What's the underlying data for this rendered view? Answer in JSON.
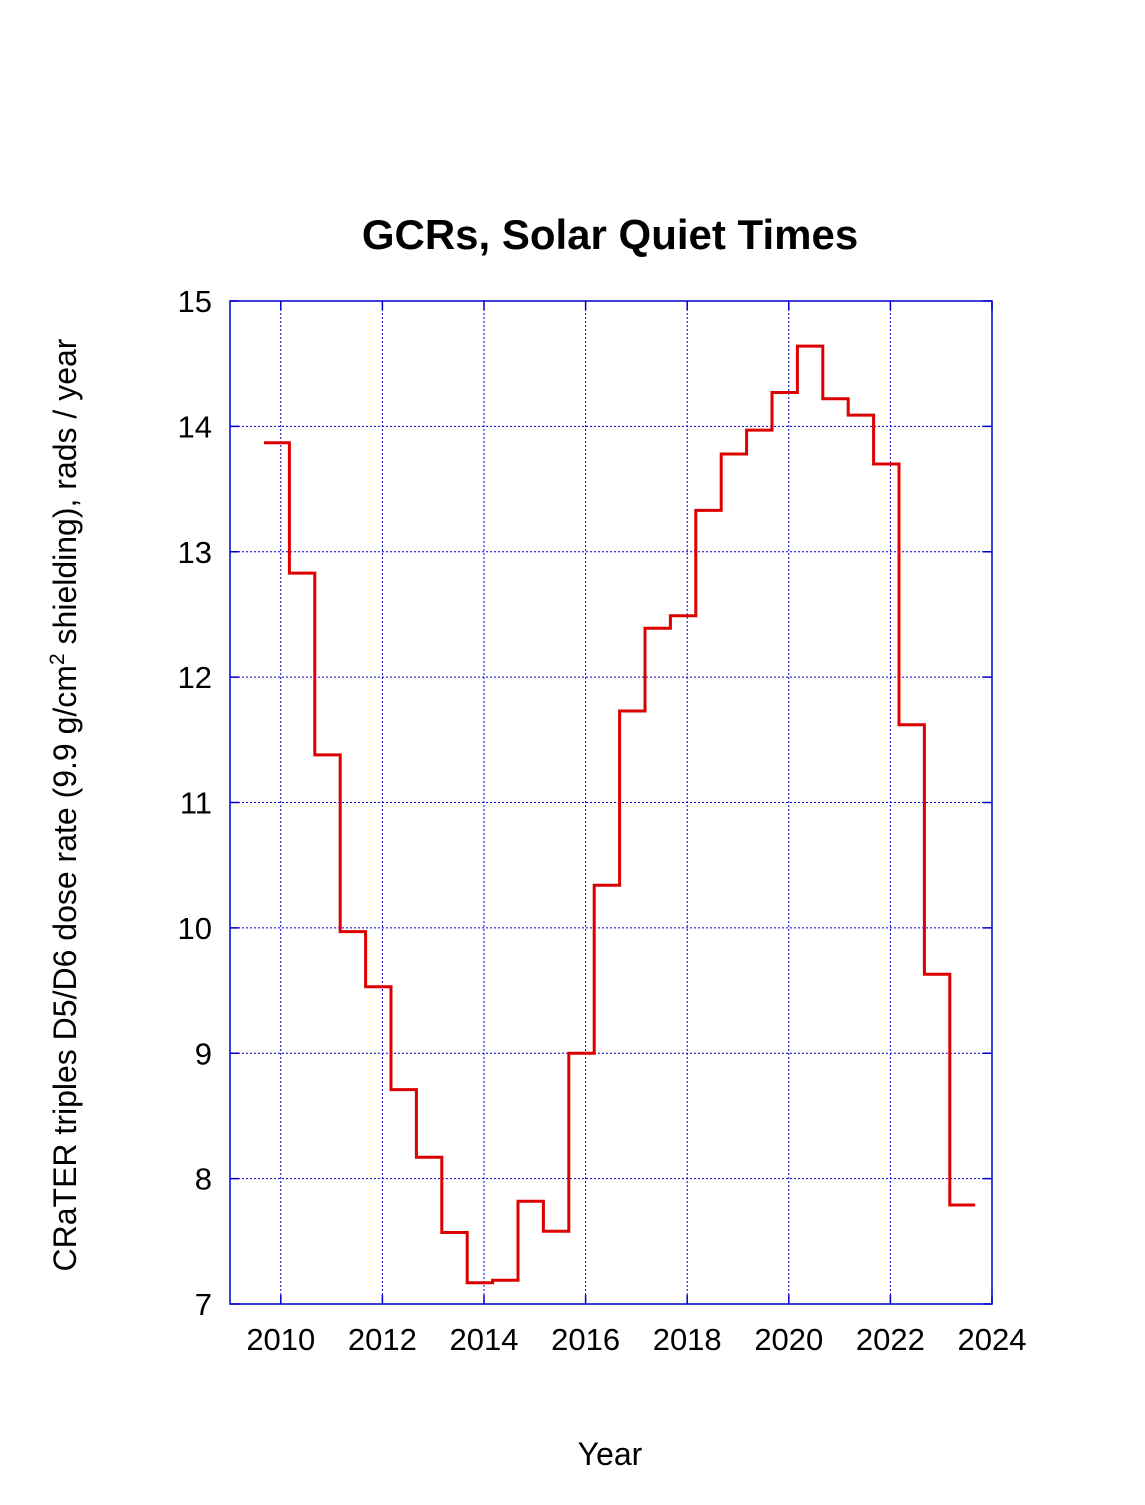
{
  "chart_data": {
    "type": "line",
    "step": true,
    "title": "GCRs, Solar Quiet Times",
    "xlabel": "Year",
    "ylabel_parts": [
      "CRaTER triples D5/D6 dose rate (9.9 g/cm",
      "2",
      " shielding), rads / year"
    ],
    "xlim": [
      2009,
      2024
    ],
    "ylim": [
      7,
      15
    ],
    "xticks": [
      2010,
      2012,
      2014,
      2016,
      2018,
      2020,
      2022,
      2024
    ],
    "yticks": [
      7,
      8,
      9,
      10,
      11,
      12,
      13,
      14,
      15
    ],
    "grid": true,
    "line_color": "#dd0000",
    "grid_color": "#0000cc",
    "series": [
      {
        "steps": [
          {
            "x0": 2009.67,
            "x1": 2010.17,
            "y": 13.87
          },
          {
            "x0": 2010.17,
            "x1": 2010.67,
            "y": 12.83
          },
          {
            "x0": 2010.67,
            "x1": 2011.17,
            "y": 11.38
          },
          {
            "x0": 2011.17,
            "x1": 2011.67,
            "y": 9.97
          },
          {
            "x0": 2011.67,
            "x1": 2012.17,
            "y": 9.53
          },
          {
            "x0": 2012.17,
            "x1": 2012.67,
            "y": 8.71
          },
          {
            "x0": 2012.67,
            "x1": 2013.17,
            "y": 8.17
          },
          {
            "x0": 2013.17,
            "x1": 2013.67,
            "y": 7.57
          },
          {
            "x0": 2013.67,
            "x1": 2014.17,
            "y": 7.17
          },
          {
            "x0": 2014.17,
            "x1": 2014.67,
            "y": 7.19
          },
          {
            "x0": 2014.67,
            "x1": 2015.17,
            "y": 7.82
          },
          {
            "x0": 2015.17,
            "x1": 2015.67,
            "y": 7.58
          },
          {
            "x0": 2015.67,
            "x1": 2016.17,
            "y": 9.0
          },
          {
            "x0": 2016.17,
            "x1": 2016.67,
            "y": 10.34
          },
          {
            "x0": 2016.67,
            "x1": 2017.17,
            "y": 11.73
          },
          {
            "x0": 2017.17,
            "x1": 2017.67,
            "y": 12.39
          },
          {
            "x0": 2017.67,
            "x1": 2018.17,
            "y": 12.49
          },
          {
            "x0": 2018.17,
            "x1": 2018.67,
            "y": 13.33
          },
          {
            "x0": 2018.67,
            "x1": 2019.17,
            "y": 13.78
          },
          {
            "x0": 2019.17,
            "x1": 2019.67,
            "y": 13.97
          },
          {
            "x0": 2019.67,
            "x1": 2020.17,
            "y": 14.27
          },
          {
            "x0": 2020.17,
            "x1": 2020.67,
            "y": 14.64
          },
          {
            "x0": 2020.67,
            "x1": 2021.17,
            "y": 14.22
          },
          {
            "x0": 2021.17,
            "x1": 2021.67,
            "y": 14.09
          },
          {
            "x0": 2021.67,
            "x1": 2022.17,
            "y": 13.7
          },
          {
            "x0": 2022.17,
            "x1": 2022.67,
            "y": 11.62
          },
          {
            "x0": 2022.67,
            "x1": 2023.17,
            "y": 9.63
          },
          {
            "x0": 2023.17,
            "x1": 2023.67,
            "y": 7.79
          }
        ]
      }
    ]
  }
}
